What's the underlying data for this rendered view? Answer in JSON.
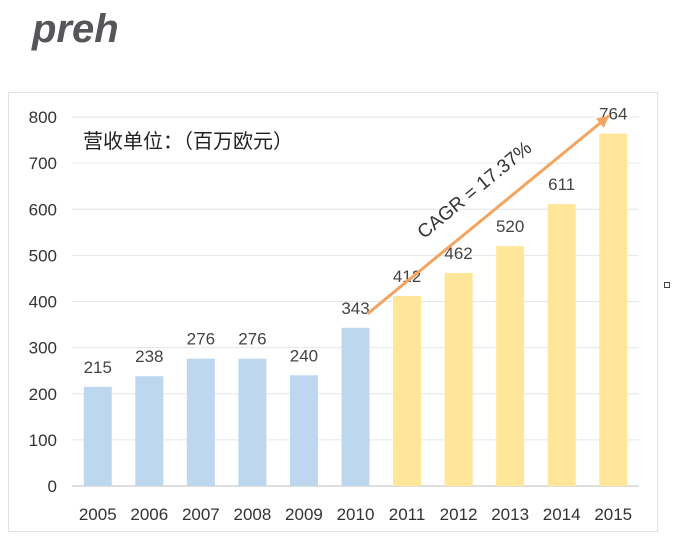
{
  "logo": {
    "text": "preh",
    "color": "#54565a"
  },
  "chart_data": {
    "type": "bar",
    "title": "营收单位：（百万欧元）",
    "categories": [
      "2005",
      "2006",
      "2007",
      "2008",
      "2009",
      "2010",
      "2011",
      "2012",
      "2013",
      "2014",
      "2015"
    ],
    "values": [
      215,
      238,
      276,
      276,
      240,
      343,
      412,
      462,
      520,
      611,
      764
    ],
    "bar_colors": [
      "#bdd7ee",
      "#bdd7ee",
      "#bdd7ee",
      "#bdd7ee",
      "#bdd7ee",
      "#bdd7ee",
      "#ffe699",
      "#ffe699",
      "#ffe699",
      "#ffe699",
      "#ffe699"
    ],
    "ylim": [
      0,
      800
    ],
    "yticks": [
      0,
      100,
      200,
      300,
      400,
      500,
      600,
      700,
      800
    ],
    "grid": true,
    "annotation": {
      "text": "CAGR = 17.37%",
      "color": "#f4a460",
      "from_index": 5,
      "to_index": 10
    }
  }
}
